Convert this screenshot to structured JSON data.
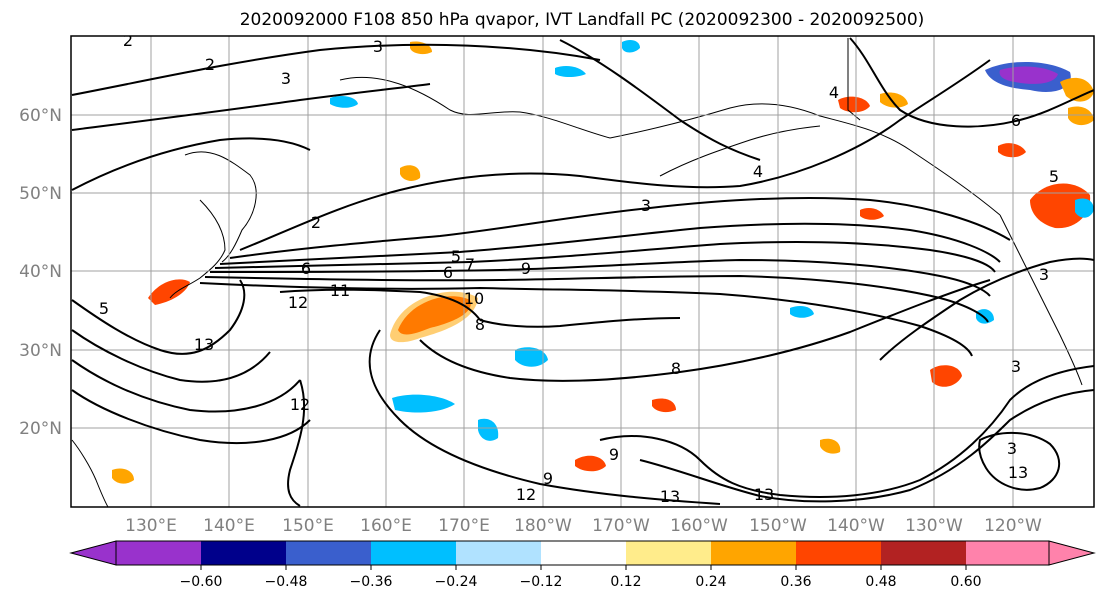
{
  "title": "2020092000 F108 850 hPa qvapor, IVT Landfall PC (2020092300 - 2020092500)",
  "map": {
    "latitude_labels": [
      "60°N",
      "50°N",
      "40°N",
      "30°N",
      "20°N"
    ],
    "longitude_labels": [
      "130°E",
      "140°E",
      "150°E",
      "160°E",
      "170°E",
      "180°W",
      "170°W",
      "160°W",
      "150°W",
      "140°W",
      "130°W",
      "120°W"
    ],
    "contour_labels": [
      "2",
      "2",
      "3",
      "3",
      "2",
      "4",
      "3",
      "4",
      "6",
      "5",
      "5",
      "6",
      "5",
      "7",
      "9",
      "6",
      "12",
      "11",
      "10",
      "8",
      "13",
      "12",
      "8",
      "9",
      "9",
      "12",
      "13",
      "13",
      "13",
      "3",
      "3",
      "3"
    ]
  },
  "colorbar": {
    "colors": [
      "#9932CC",
      "#00008B",
      "#3A5FCD",
      "#00BFFF",
      "#B0E2FF",
      "#FFFFFF",
      "#FFEC8B",
      "#FFA500",
      "#FF4500",
      "#B22222",
      "#FF82AB"
    ],
    "tick_labels": [
      "−0.60",
      "−0.48",
      "−0.36",
      "−0.24",
      "−0.12",
      "0.12",
      "0.24",
      "0.36",
      "0.48",
      "0.60"
    ]
  }
}
